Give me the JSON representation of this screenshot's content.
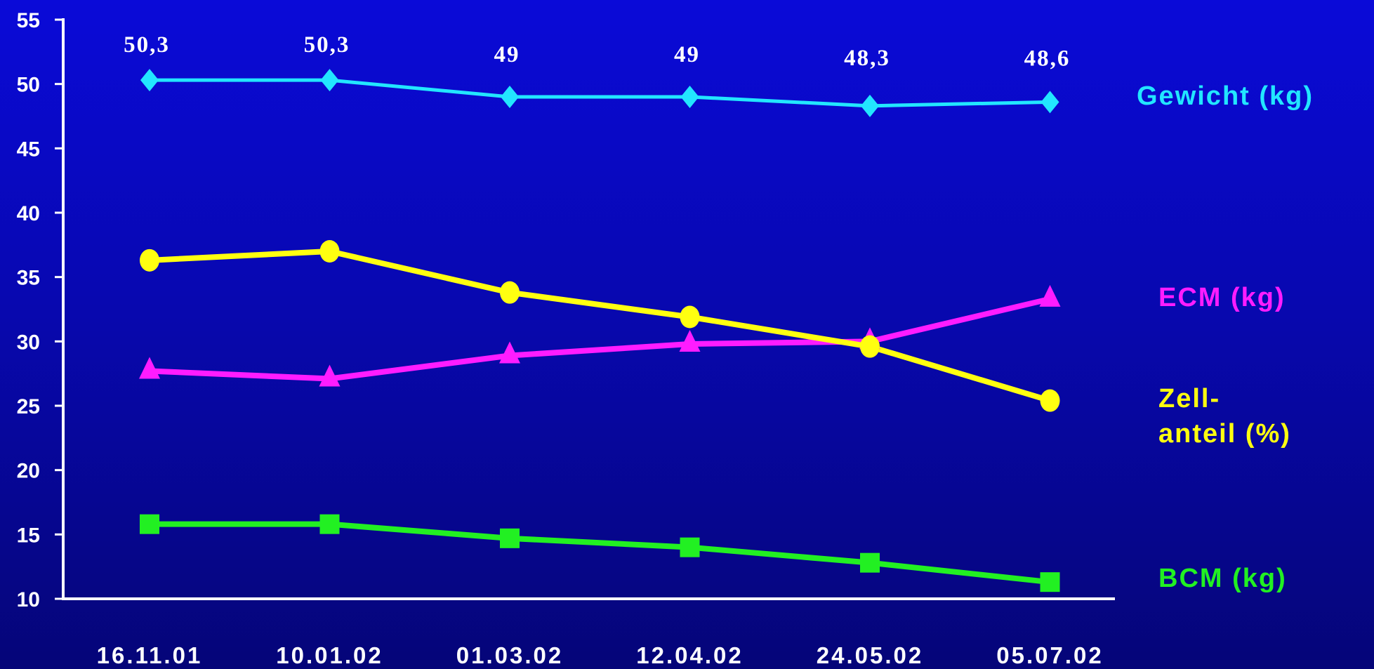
{
  "chart_data": {
    "type": "line",
    "title": "",
    "xlabel": "",
    "ylabel": "",
    "ylim": [
      10,
      55
    ],
    "yticks": [
      55,
      50,
      45,
      40,
      35,
      30,
      25,
      20,
      15,
      10
    ],
    "categories": [
      "16.11.01",
      "10.01.02",
      "01.03.02",
      "12.04.02",
      "24.05.02",
      "05.07.02"
    ],
    "grid": false,
    "legend_placement": "right",
    "series": [
      {
        "name": "Gewicht (kg)",
        "color": "#22e6ff",
        "marker": "diamond",
        "values": [
          50.3,
          50.3,
          49,
          49,
          48.3,
          48.6
        ],
        "data_labels": [
          "50,3",
          "50,3",
          "49",
          "49",
          "48,3",
          "48,6"
        ]
      },
      {
        "name": "ECM (kg)",
        "color": "#ff1cff",
        "marker": "triangle",
        "values": [
          27.7,
          27.1,
          28.9,
          29.8,
          30.0,
          33.3
        ]
      },
      {
        "name": "Zell-|anteil (%)",
        "color": "#ffff10",
        "marker": "circle",
        "values": [
          36.3,
          37.0,
          33.8,
          31.9,
          29.6,
          25.4
        ]
      },
      {
        "name": "BCM (kg)",
        "color": "#22f022",
        "marker": "square",
        "values": [
          15.8,
          15.8,
          14.7,
          14.0,
          12.8,
          11.3
        ]
      }
    ]
  }
}
